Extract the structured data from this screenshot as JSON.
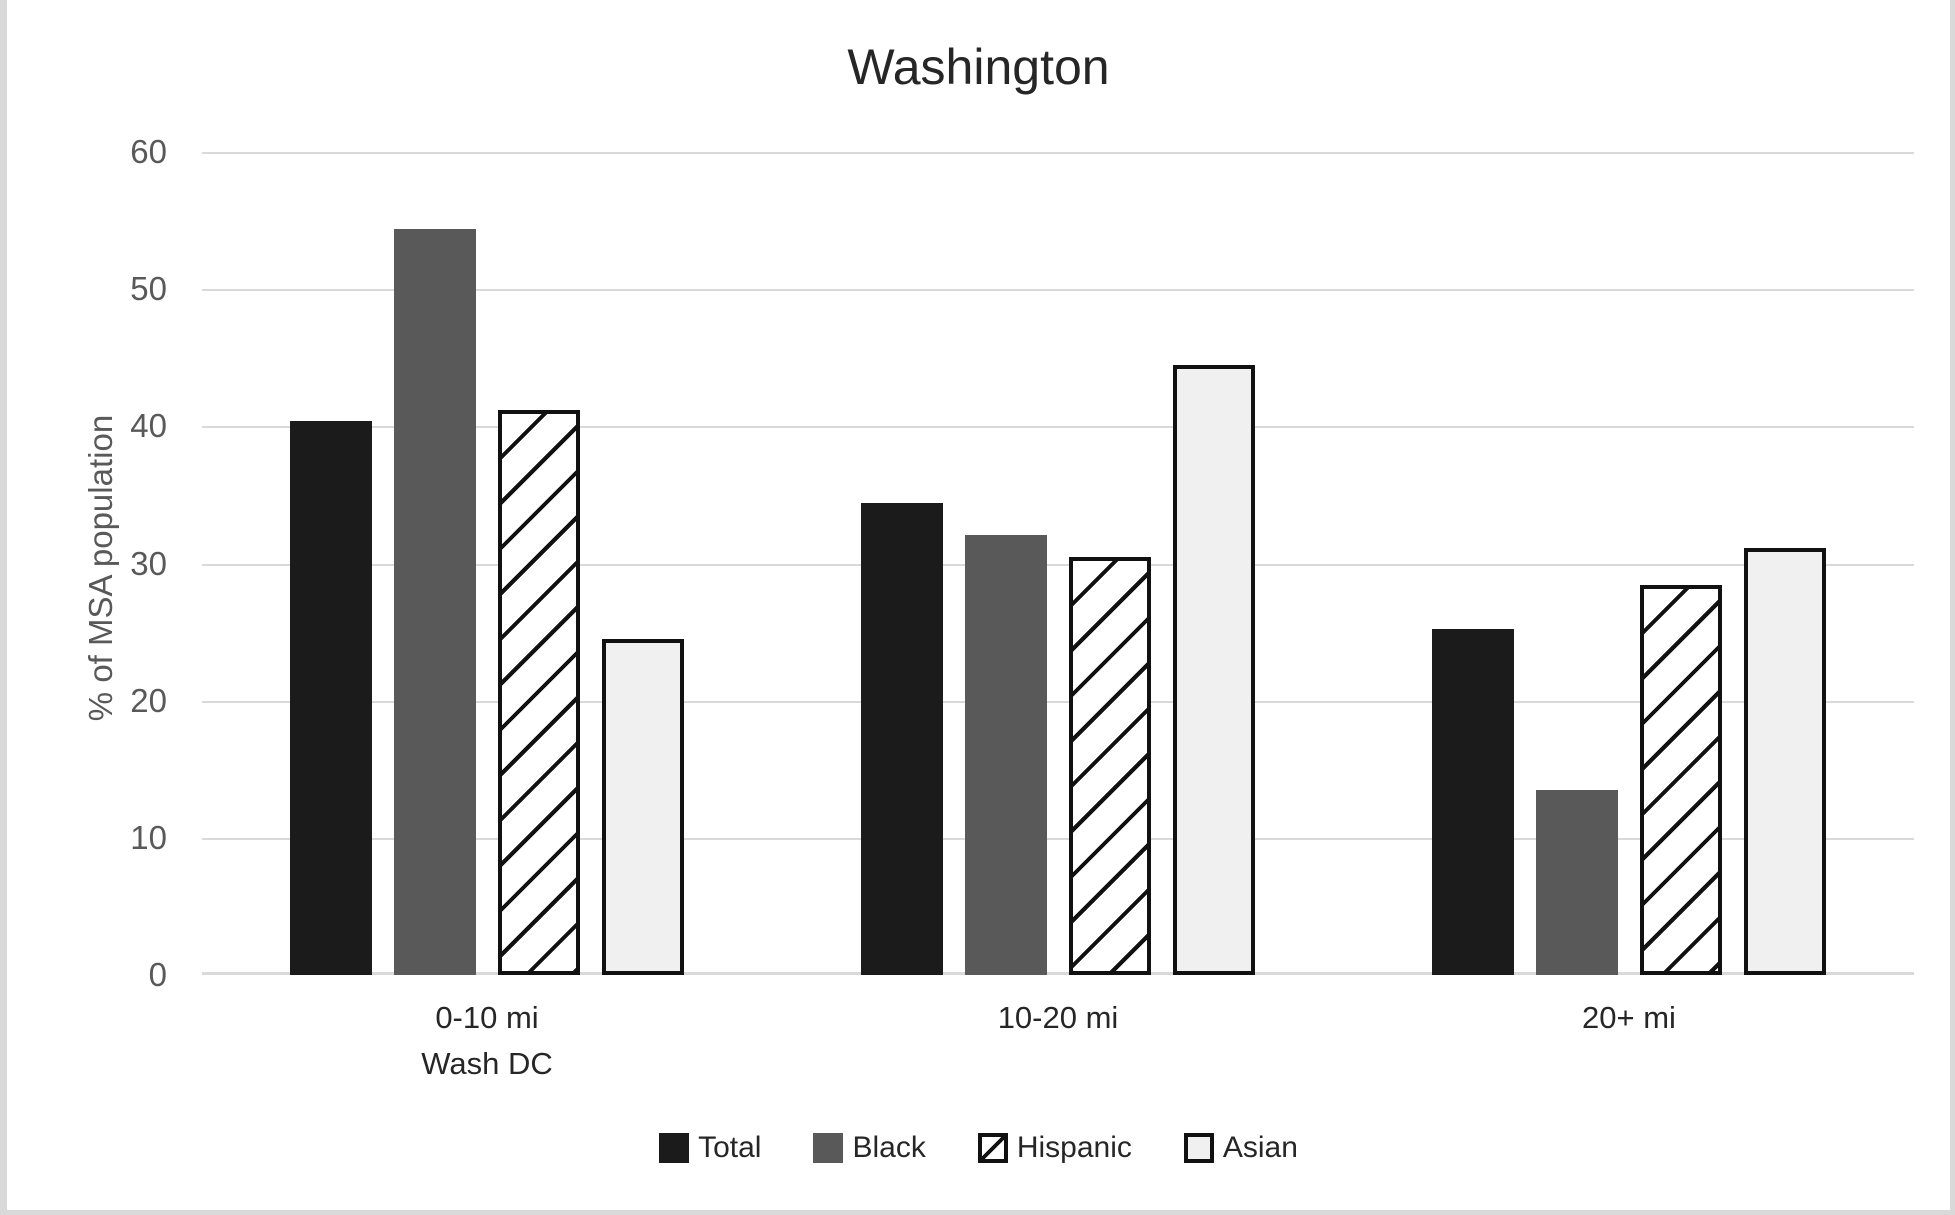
{
  "title": "Washington",
  "chart_data": {
    "type": "bar",
    "title": "Washington",
    "ylabel": "% of MSA population",
    "xlabel": "",
    "ylim": [
      0,
      60
    ],
    "yticks": [
      0,
      10,
      20,
      30,
      40,
      50,
      60
    ],
    "grid": true,
    "legend_position": "bottom",
    "categories": [
      "0-10 mi\nWash DC",
      "10-20 mi",
      "20+ mi"
    ],
    "series": [
      {
        "name": "Total",
        "key": "total",
        "style": "solid",
        "color": "#1b1b1b",
        "values": [
          40.4,
          34.4,
          25.2
        ]
      },
      {
        "name": "Black",
        "key": "black",
        "style": "solid",
        "color": "#595959",
        "values": [
          54.4,
          32.1,
          13.5
        ]
      },
      {
        "name": "Hispanic",
        "key": "hispanic",
        "style": "hatched",
        "color": "#ffffff",
        "hatch_color": "#111111",
        "values": [
          41.2,
          30.5,
          28.4
        ]
      },
      {
        "name": "Asian",
        "key": "asian",
        "style": "outlined",
        "color": "#f0f0f0",
        "border_color": "#111111",
        "values": [
          24.5,
          44.5,
          31.1
        ]
      }
    ],
    "colors": {
      "gridline": "#d9d9d9",
      "tick_label": "#595959",
      "axis_title": "#595959",
      "text": "#262626",
      "frame": "#d9d9d9"
    }
  }
}
